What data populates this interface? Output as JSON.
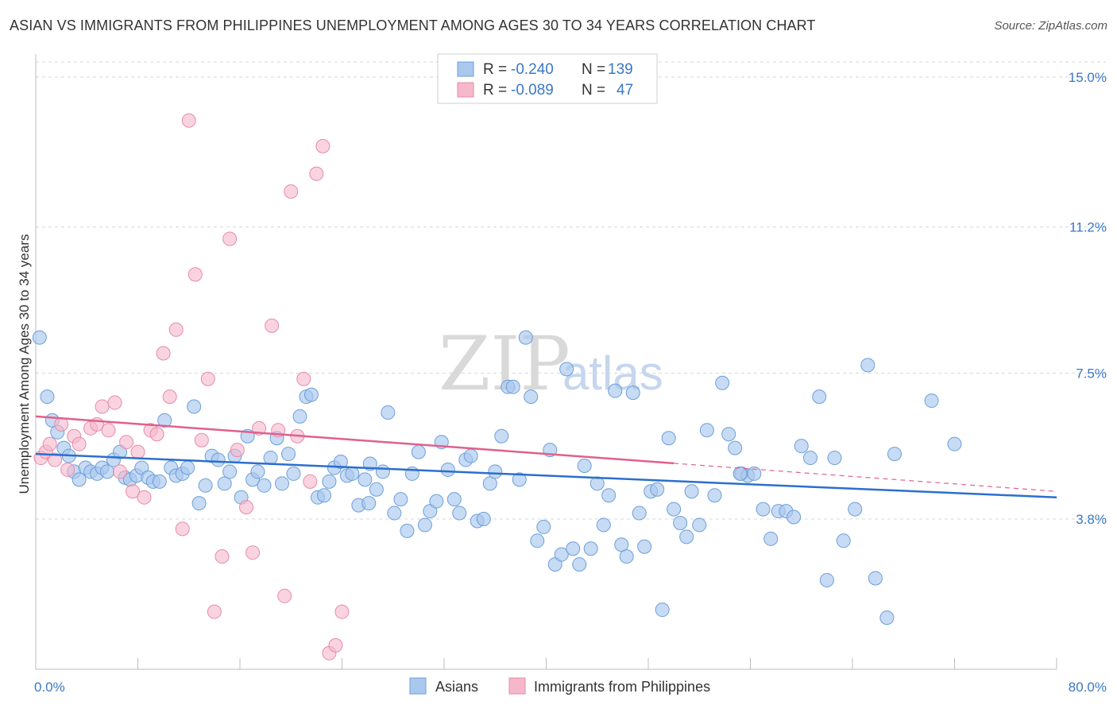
{
  "title": "ASIAN VS IMMIGRANTS FROM PHILIPPINES UNEMPLOYMENT AMONG AGES 30 TO 34 YEARS CORRELATION CHART",
  "source": "Source: ZipAtlas.com",
  "watermark": {
    "zip": "ZIP",
    "atlas": "atlas"
  },
  "colors": {
    "asians": "#a9c8ee",
    "asians_edge": "#6d9fd9",
    "asians_line": "#2b6fce",
    "philippines": "#f5b8cb",
    "philippines_edge": "#e88aa8",
    "philippines_line": "#e0608c",
    "tick_label": "#3b78c4",
    "grid": "#d7d7d7"
  },
  "legend": {
    "rows": [
      {
        "r_label": "R =",
        "r_value": "-0.240",
        "n_label": "N =",
        "n_value": "139"
      },
      {
        "r_label": "R =",
        "r_value": "-0.089",
        "n_label": "N =",
        "n_value": "47"
      }
    ]
  },
  "bottom_legend": {
    "asians": "Asians",
    "philippines": "Immigrants from Philippines"
  },
  "chart_data": {
    "type": "scatter",
    "title": "ASIAN VS IMMIGRANTS FROM PHILIPPINES UNEMPLOYMENT AMONG AGES 30 TO 34 YEARS CORRELATION CHART",
    "xlabel": "",
    "ylabel": "Unemployment Among Ages 30 to 34 years",
    "xlim": [
      0,
      80
    ],
    "ylim": [
      0,
      15.7
    ],
    "x_tick_labels": [
      "0.0%",
      "80.0%"
    ],
    "y_ticks": [
      3.8,
      7.5,
      11.2,
      15.0
    ],
    "y_tick_labels": [
      "3.8%",
      "7.5%",
      "11.2%",
      "15.0%"
    ],
    "grid": true,
    "legend_position": "top-center",
    "series": [
      {
        "name": "Asians",
        "R": -0.24,
        "N": 139,
        "trend": {
          "x": [
            0,
            80
          ],
          "y": [
            5.45,
            4.35
          ]
        },
        "points": [
          [
            0.3,
            8.4
          ],
          [
            0.9,
            6.9
          ],
          [
            1.3,
            6.3
          ],
          [
            1.7,
            6.0
          ],
          [
            2.2,
            5.6
          ],
          [
            2.6,
            5.4
          ],
          [
            3.0,
            5.0
          ],
          [
            3.4,
            4.8
          ],
          [
            3.9,
            5.1
          ],
          [
            4.3,
            5.0
          ],
          [
            4.8,
            4.95
          ],
          [
            5.2,
            5.1
          ],
          [
            5.6,
            5.0
          ],
          [
            6.1,
            5.3
          ],
          [
            6.6,
            5.5
          ],
          [
            7.0,
            4.85
          ],
          [
            7.4,
            4.8
          ],
          [
            7.9,
            4.9
          ],
          [
            8.3,
            5.1
          ],
          [
            8.8,
            4.85
          ],
          [
            9.2,
            4.75
          ],
          [
            9.7,
            4.75
          ],
          [
            10.1,
            6.3
          ],
          [
            10.6,
            5.1
          ],
          [
            11.0,
            4.9
          ],
          [
            11.5,
            4.95
          ],
          [
            11.9,
            5.1
          ],
          [
            12.4,
            6.65
          ],
          [
            12.8,
            4.2
          ],
          [
            13.3,
            4.65
          ],
          [
            13.8,
            5.4
          ],
          [
            14.3,
            5.3
          ],
          [
            14.8,
            4.7
          ],
          [
            15.2,
            5.0
          ],
          [
            15.6,
            5.4
          ],
          [
            16.1,
            4.35
          ],
          [
            16.6,
            5.9
          ],
          [
            17.0,
            4.8
          ],
          [
            17.4,
            5.0
          ],
          [
            17.9,
            4.65
          ],
          [
            18.4,
            5.35
          ],
          [
            18.9,
            5.85
          ],
          [
            19.3,
            4.7
          ],
          [
            19.8,
            5.45
          ],
          [
            20.2,
            4.95
          ],
          [
            20.7,
            6.4
          ],
          [
            21.2,
            6.9
          ],
          [
            21.6,
            6.95
          ],
          [
            22.1,
            4.35
          ],
          [
            22.6,
            4.4
          ],
          [
            23.0,
            4.75
          ],
          [
            23.4,
            5.1
          ],
          [
            23.9,
            5.25
          ],
          [
            24.4,
            4.9
          ],
          [
            24.8,
            4.95
          ],
          [
            25.3,
            4.15
          ],
          [
            25.8,
            4.8
          ],
          [
            26.2,
            5.2
          ],
          [
            26.7,
            4.55
          ],
          [
            27.2,
            5.0
          ],
          [
            27.6,
            6.5
          ],
          [
            28.1,
            3.95
          ],
          [
            28.6,
            4.3
          ],
          [
            29.1,
            3.5
          ],
          [
            29.5,
            4.95
          ],
          [
            30.0,
            5.5
          ],
          [
            30.5,
            3.65
          ],
          [
            30.9,
            4.0
          ],
          [
            31.4,
            4.25
          ],
          [
            31.8,
            5.75
          ],
          [
            32.3,
            5.05
          ],
          [
            32.8,
            4.3
          ],
          [
            33.2,
            3.95
          ],
          [
            33.7,
            5.3
          ],
          [
            34.1,
            5.4
          ],
          [
            34.6,
            3.75
          ],
          [
            35.1,
            3.8
          ],
          [
            35.6,
            4.7
          ],
          [
            36.0,
            5.0
          ],
          [
            36.5,
            5.9
          ],
          [
            37.0,
            7.15
          ],
          [
            37.4,
            7.15
          ],
          [
            37.9,
            4.8
          ],
          [
            38.4,
            8.4
          ],
          [
            38.8,
            6.9
          ],
          [
            39.3,
            3.25
          ],
          [
            39.8,
            3.6
          ],
          [
            40.3,
            5.55
          ],
          [
            40.7,
            2.65
          ],
          [
            41.2,
            2.9
          ],
          [
            41.6,
            7.6
          ],
          [
            42.1,
            3.05
          ],
          [
            42.6,
            2.65
          ],
          [
            43.0,
            5.15
          ],
          [
            43.5,
            3.05
          ],
          [
            44.0,
            4.7
          ],
          [
            44.5,
            3.65
          ],
          [
            44.9,
            4.4
          ],
          [
            45.4,
            7.05
          ],
          [
            45.9,
            3.15
          ],
          [
            46.3,
            2.85
          ],
          [
            46.8,
            7.0
          ],
          [
            47.3,
            3.95
          ],
          [
            47.7,
            3.1
          ],
          [
            48.2,
            4.5
          ],
          [
            48.7,
            4.55
          ],
          [
            49.1,
            1.5
          ],
          [
            49.6,
            5.85
          ],
          [
            50.0,
            4.05
          ],
          [
            50.5,
            3.7
          ],
          [
            51.0,
            3.35
          ],
          [
            51.4,
            4.5
          ],
          [
            52.0,
            3.65
          ],
          [
            52.6,
            6.05
          ],
          [
            53.2,
            4.4
          ],
          [
            53.8,
            7.25
          ],
          [
            54.3,
            5.95
          ],
          [
            54.8,
            5.6
          ],
          [
            55.3,
            4.95
          ],
          [
            55.8,
            4.9
          ],
          [
            56.3,
            4.95
          ],
          [
            57.0,
            4.05
          ],
          [
            57.6,
            3.3
          ],
          [
            58.2,
            4.0
          ],
          [
            58.8,
            4.0
          ],
          [
            59.4,
            3.85
          ],
          [
            60.0,
            5.65
          ],
          [
            60.7,
            5.35
          ],
          [
            61.4,
            6.9
          ],
          [
            62.0,
            2.25
          ],
          [
            62.6,
            5.35
          ],
          [
            63.3,
            3.25
          ],
          [
            64.2,
            4.05
          ],
          [
            65.2,
            7.7
          ],
          [
            65.8,
            2.3
          ],
          [
            66.7,
            1.3
          ],
          [
            67.3,
            5.45
          ],
          [
            70.2,
            6.8
          ],
          [
            72.0,
            5.7
          ],
          [
            55.2,
            4.95
          ],
          [
            26.1,
            4.2
          ]
        ]
      },
      {
        "name": "Immigrants from Philippines",
        "R": -0.089,
        "N": 47,
        "trend": {
          "x": [
            0,
            80
          ],
          "y": [
            6.4,
            4.5
          ]
        },
        "points": [
          [
            0.4,
            5.35
          ],
          [
            0.8,
            5.5
          ],
          [
            1.1,
            5.7
          ],
          [
            1.5,
            5.3
          ],
          [
            2.0,
            6.2
          ],
          [
            2.5,
            5.05
          ],
          [
            3.0,
            5.9
          ],
          [
            3.4,
            5.7
          ],
          [
            4.3,
            6.1
          ],
          [
            4.8,
            6.2
          ],
          [
            5.2,
            6.65
          ],
          [
            5.7,
            6.05
          ],
          [
            6.2,
            6.75
          ],
          [
            6.6,
            5.0
          ],
          [
            7.1,
            5.75
          ],
          [
            7.6,
            4.5
          ],
          [
            8.0,
            5.5
          ],
          [
            8.5,
            4.35
          ],
          [
            9.0,
            6.05
          ],
          [
            9.5,
            5.95
          ],
          [
            10.0,
            8.0
          ],
          [
            10.5,
            6.9
          ],
          [
            11.0,
            8.6
          ],
          [
            11.5,
            3.55
          ],
          [
            12.0,
            13.9
          ],
          [
            12.5,
            10.0
          ],
          [
            13.0,
            5.8
          ],
          [
            13.5,
            7.35
          ],
          [
            14.0,
            1.45
          ],
          [
            14.6,
            2.85
          ],
          [
            15.2,
            10.9
          ],
          [
            15.8,
            5.55
          ],
          [
            16.5,
            4.1
          ],
          [
            17.0,
            2.95
          ],
          [
            17.5,
            6.1
          ],
          [
            18.5,
            8.7
          ],
          [
            19.0,
            6.05
          ],
          [
            19.5,
            1.85
          ],
          [
            20.0,
            12.1
          ],
          [
            20.5,
            5.9
          ],
          [
            21.0,
            7.35
          ],
          [
            21.5,
            4.75
          ],
          [
            22.0,
            12.55
          ],
          [
            22.5,
            13.25
          ],
          [
            23.0,
            0.4
          ],
          [
            23.5,
            0.6
          ],
          [
            24.0,
            1.45
          ]
        ]
      }
    ]
  }
}
